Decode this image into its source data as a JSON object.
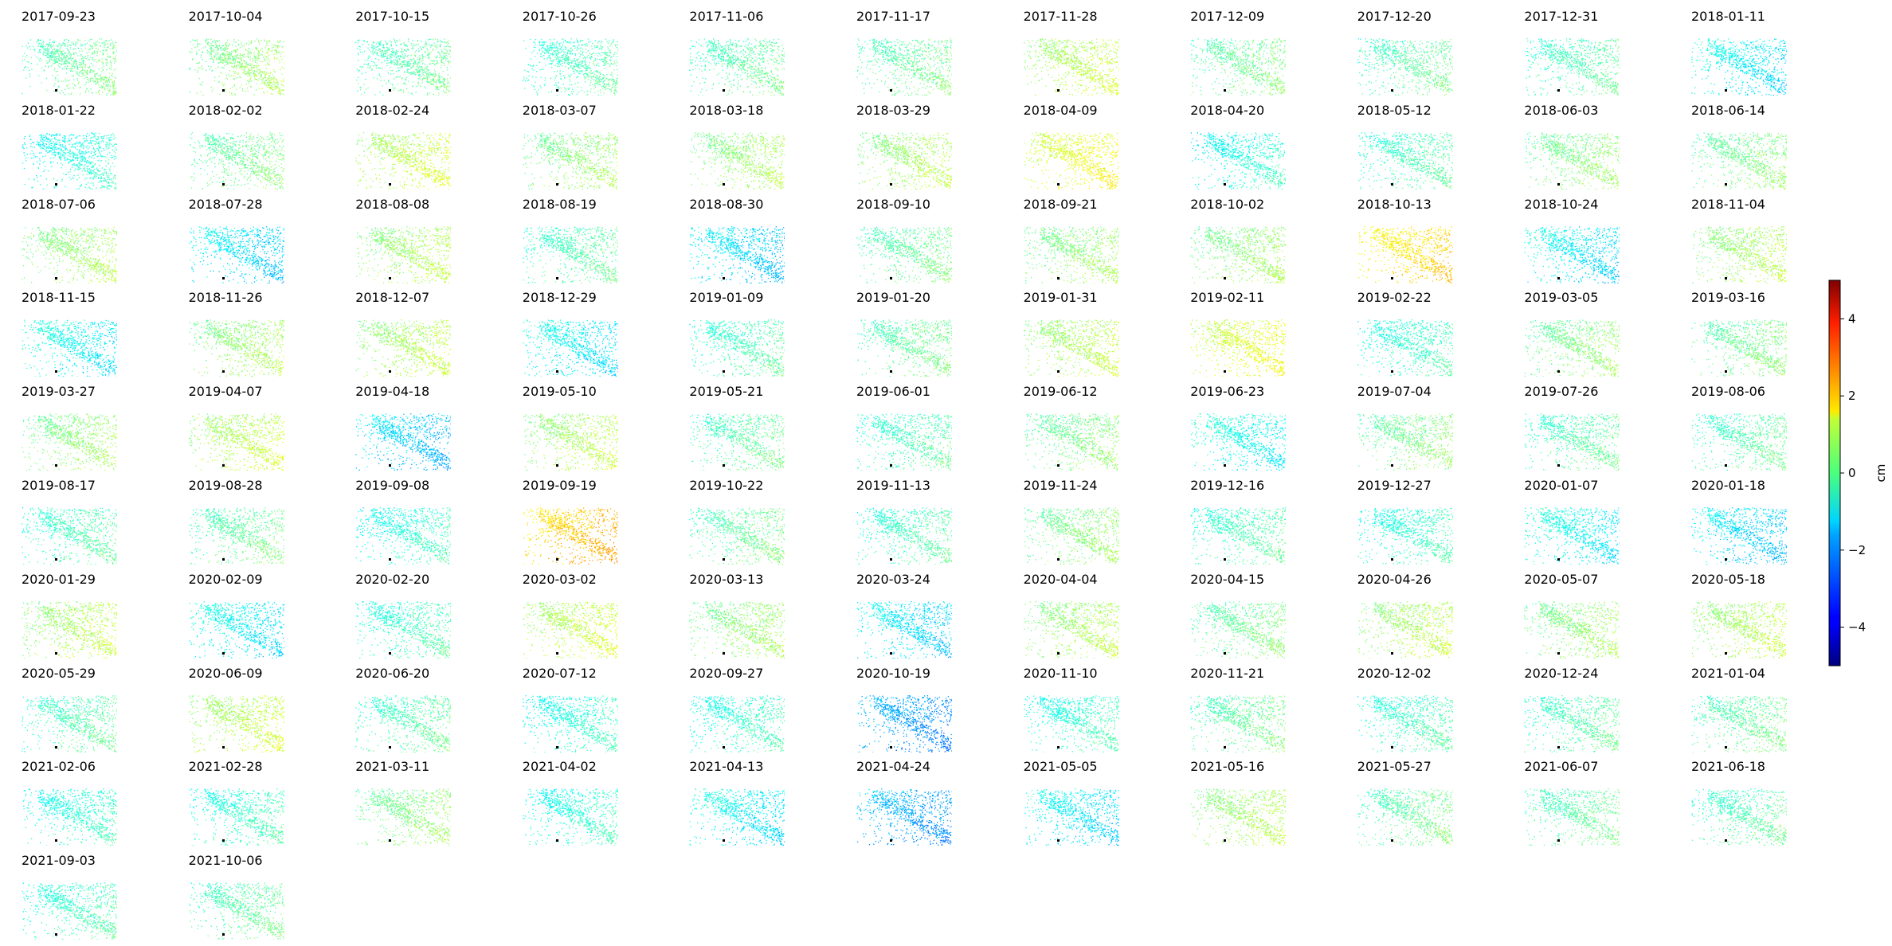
{
  "chart_data": {
    "type": "heatmap",
    "description_type": "small-multiples scatter maps of displacement",
    "colormap": "jet",
    "value_range": [
      -5,
      5
    ],
    "colorbar": {
      "label": "cm",
      "ticks": [
        4,
        2,
        0,
        -2,
        -4
      ],
      "tick_labels": [
        "4",
        "2",
        "0",
        "−2",
        "−4"
      ]
    },
    "grid": {
      "columns": 11,
      "rows": 10
    },
    "panels": [
      {
        "date": "2017-09-23",
        "mean": -0.3
      },
      {
        "date": "2017-10-04",
        "mean": 0.1
      },
      {
        "date": "2017-10-15",
        "mean": -0.4
      },
      {
        "date": "2017-10-26",
        "mean": -0.6
      },
      {
        "date": "2017-11-06",
        "mean": -0.4
      },
      {
        "date": "2017-11-17",
        "mean": -0.3
      },
      {
        "date": "2017-11-28",
        "mean": 0.5
      },
      {
        "date": "2017-12-09",
        "mean": -0.2
      },
      {
        "date": "2017-12-20",
        "mean": -0.4
      },
      {
        "date": "2017-12-31",
        "mean": -0.5
      },
      {
        "date": "2018-01-11",
        "mean": -1.3
      },
      {
        "date": "2018-01-22",
        "mean": -1.0
      },
      {
        "date": "2018-02-02",
        "mean": -0.2
      },
      {
        "date": "2018-02-24",
        "mean": 0.6
      },
      {
        "date": "2018-03-07",
        "mean": 0.1
      },
      {
        "date": "2018-03-18",
        "mean": 0.2
      },
      {
        "date": "2018-03-29",
        "mean": 0.3
      },
      {
        "date": "2018-04-09",
        "mean": 1.0
      },
      {
        "date": "2018-04-20",
        "mean": -1.0
      },
      {
        "date": "2018-05-12",
        "mean": -0.6
      },
      {
        "date": "2018-06-03",
        "mean": 0.0
      },
      {
        "date": "2018-06-14",
        "mean": -0.1
      },
      {
        "date": "2018-07-06",
        "mean": 0.2
      },
      {
        "date": "2018-07-28",
        "mean": -1.5
      },
      {
        "date": "2018-08-08",
        "mean": 0.3
      },
      {
        "date": "2018-08-19",
        "mean": -0.5
      },
      {
        "date": "2018-08-30",
        "mean": -1.6
      },
      {
        "date": "2018-09-10",
        "mean": -0.3
      },
      {
        "date": "2018-09-21",
        "mean": 0.1
      },
      {
        "date": "2018-10-02",
        "mean": 0.1
      },
      {
        "date": "2018-10-13",
        "mean": 1.5
      },
      {
        "date": "2018-10-24",
        "mean": -1.4
      },
      {
        "date": "2018-11-04",
        "mean": 0.3
      },
      {
        "date": "2018-11-15",
        "mean": -1.2
      },
      {
        "date": "2018-11-26",
        "mean": 0.2
      },
      {
        "date": "2018-12-07",
        "mean": 0.4
      },
      {
        "date": "2018-12-29",
        "mean": -1.3
      },
      {
        "date": "2019-01-09",
        "mean": -0.6
      },
      {
        "date": "2019-01-20",
        "mean": -0.3
      },
      {
        "date": "2019-01-31",
        "mean": 0.4
      },
      {
        "date": "2019-02-11",
        "mean": 0.9
      },
      {
        "date": "2019-02-22",
        "mean": -0.8
      },
      {
        "date": "2019-03-05",
        "mean": 0.0
      },
      {
        "date": "2019-03-16",
        "mean": -0.2
      },
      {
        "date": "2019-03-27",
        "mean": 0.1
      },
      {
        "date": "2019-04-07",
        "mean": 0.5
      },
      {
        "date": "2019-04-18",
        "mean": -1.7
      },
      {
        "date": "2019-05-10",
        "mean": 0.4
      },
      {
        "date": "2019-05-21",
        "mean": -0.4
      },
      {
        "date": "2019-06-01",
        "mean": -0.6
      },
      {
        "date": "2019-06-12",
        "mean": -0.1
      },
      {
        "date": "2019-06-23",
        "mean": -1.1
      },
      {
        "date": "2019-07-04",
        "mean": -0.1
      },
      {
        "date": "2019-07-26",
        "mean": -0.5
      },
      {
        "date": "2019-08-06",
        "mean": -0.5
      },
      {
        "date": "2019-08-17",
        "mean": -0.6
      },
      {
        "date": "2019-08-28",
        "mean": -0.3
      },
      {
        "date": "2019-09-08",
        "mean": -0.9
      },
      {
        "date": "2019-09-19",
        "mean": 1.8
      },
      {
        "date": "2019-10-22",
        "mean": -0.3
      },
      {
        "date": "2019-11-13",
        "mean": -0.6
      },
      {
        "date": "2019-11-24",
        "mean": 0.0
      },
      {
        "date": "2019-12-16",
        "mean": -0.6
      },
      {
        "date": "2019-12-27",
        "mean": -0.8
      },
      {
        "date": "2020-01-07",
        "mean": -1.2
      },
      {
        "date": "2020-01-18",
        "mean": -1.6
      },
      {
        "date": "2020-01-29",
        "mean": 0.4
      },
      {
        "date": "2020-02-09",
        "mean": -1.3
      },
      {
        "date": "2020-02-20",
        "mean": -0.7
      },
      {
        "date": "2020-03-02",
        "mean": 0.6
      },
      {
        "date": "2020-03-13",
        "mean": 0.1
      },
      {
        "date": "2020-03-24",
        "mean": -1.5
      },
      {
        "date": "2020-04-04",
        "mean": 0.3
      },
      {
        "date": "2020-04-15",
        "mean": -0.2
      },
      {
        "date": "2020-04-26",
        "mean": 0.4
      },
      {
        "date": "2020-05-07",
        "mean": 0.1
      },
      {
        "date": "2020-05-18",
        "mean": 0.4
      },
      {
        "date": "2020-05-29",
        "mean": -0.5
      },
      {
        "date": "2020-06-09",
        "mean": 0.5
      },
      {
        "date": "2020-06-20",
        "mean": -0.5
      },
      {
        "date": "2020-07-12",
        "mean": -0.9
      },
      {
        "date": "2020-09-27",
        "mean": -0.8
      },
      {
        "date": "2020-10-19",
        "mean": -2.2
      },
      {
        "date": "2020-11-10",
        "mean": -0.8
      },
      {
        "date": "2020-11-21",
        "mean": -0.3
      },
      {
        "date": "2020-12-02",
        "mean": -0.7
      },
      {
        "date": "2020-12-24",
        "mean": -0.5
      },
      {
        "date": "2021-01-04",
        "mean": -0.3
      },
      {
        "date": "2021-02-06",
        "mean": -0.9
      },
      {
        "date": "2021-02-28",
        "mean": -0.8
      },
      {
        "date": "2021-03-11",
        "mean": 0.0
      },
      {
        "date": "2021-04-02",
        "mean": -0.9
      },
      {
        "date": "2021-04-13",
        "mean": -1.3
      },
      {
        "date": "2021-04-24",
        "mean": -2.1
      },
      {
        "date": "2021-05-05",
        "mean": -1.4
      },
      {
        "date": "2021-05-16",
        "mean": 0.3
      },
      {
        "date": "2021-05-27",
        "mean": -0.3
      },
      {
        "date": "2021-06-07",
        "mean": -0.4
      },
      {
        "date": "2021-06-18",
        "mean": -0.5
      },
      {
        "date": "2021-09-03",
        "mean": -0.7
      },
      {
        "date": "2021-10-06",
        "mean": -0.4
      }
    ]
  }
}
